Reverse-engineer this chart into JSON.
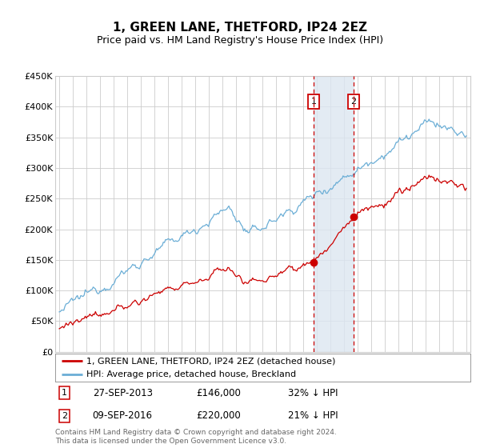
{
  "title": "1, GREEN LANE, THETFORD, IP24 2EZ",
  "subtitle": "Price paid vs. HM Land Registry's House Price Index (HPI)",
  "legend_line1": "1, GREEN LANE, THETFORD, IP24 2EZ (detached house)",
  "legend_line2": "HPI: Average price, detached house, Breckland",
  "sale1_date": "27-SEP-2013",
  "sale1_price": 146000,
  "sale1_label": "32% ↓ HPI",
  "sale2_date": "09-SEP-2016",
  "sale2_price": 220000,
  "sale2_label": "21% ↓ HPI",
  "footer": "Contains HM Land Registry data © Crown copyright and database right 2024.\nThis data is licensed under the Open Government Licence v3.0.",
  "ylim": [
    0,
    450000
  ],
  "yticks": [
    0,
    50000,
    100000,
    150000,
    200000,
    250000,
    300000,
    350000,
    400000,
    450000
  ],
  "xlim_start": 1994.7,
  "xlim_end": 2025.3,
  "hpi_color": "#6baed6",
  "price_color": "#cc0000",
  "sale_marker_color": "#cc0000",
  "shade_color": "#dce6f1",
  "grid_color": "#cccccc",
  "background_color": "#ffffff",
  "sale1_year": 2013.75,
  "sale2_year": 2016.69,
  "title_fontsize": 11,
  "subtitle_fontsize": 9
}
